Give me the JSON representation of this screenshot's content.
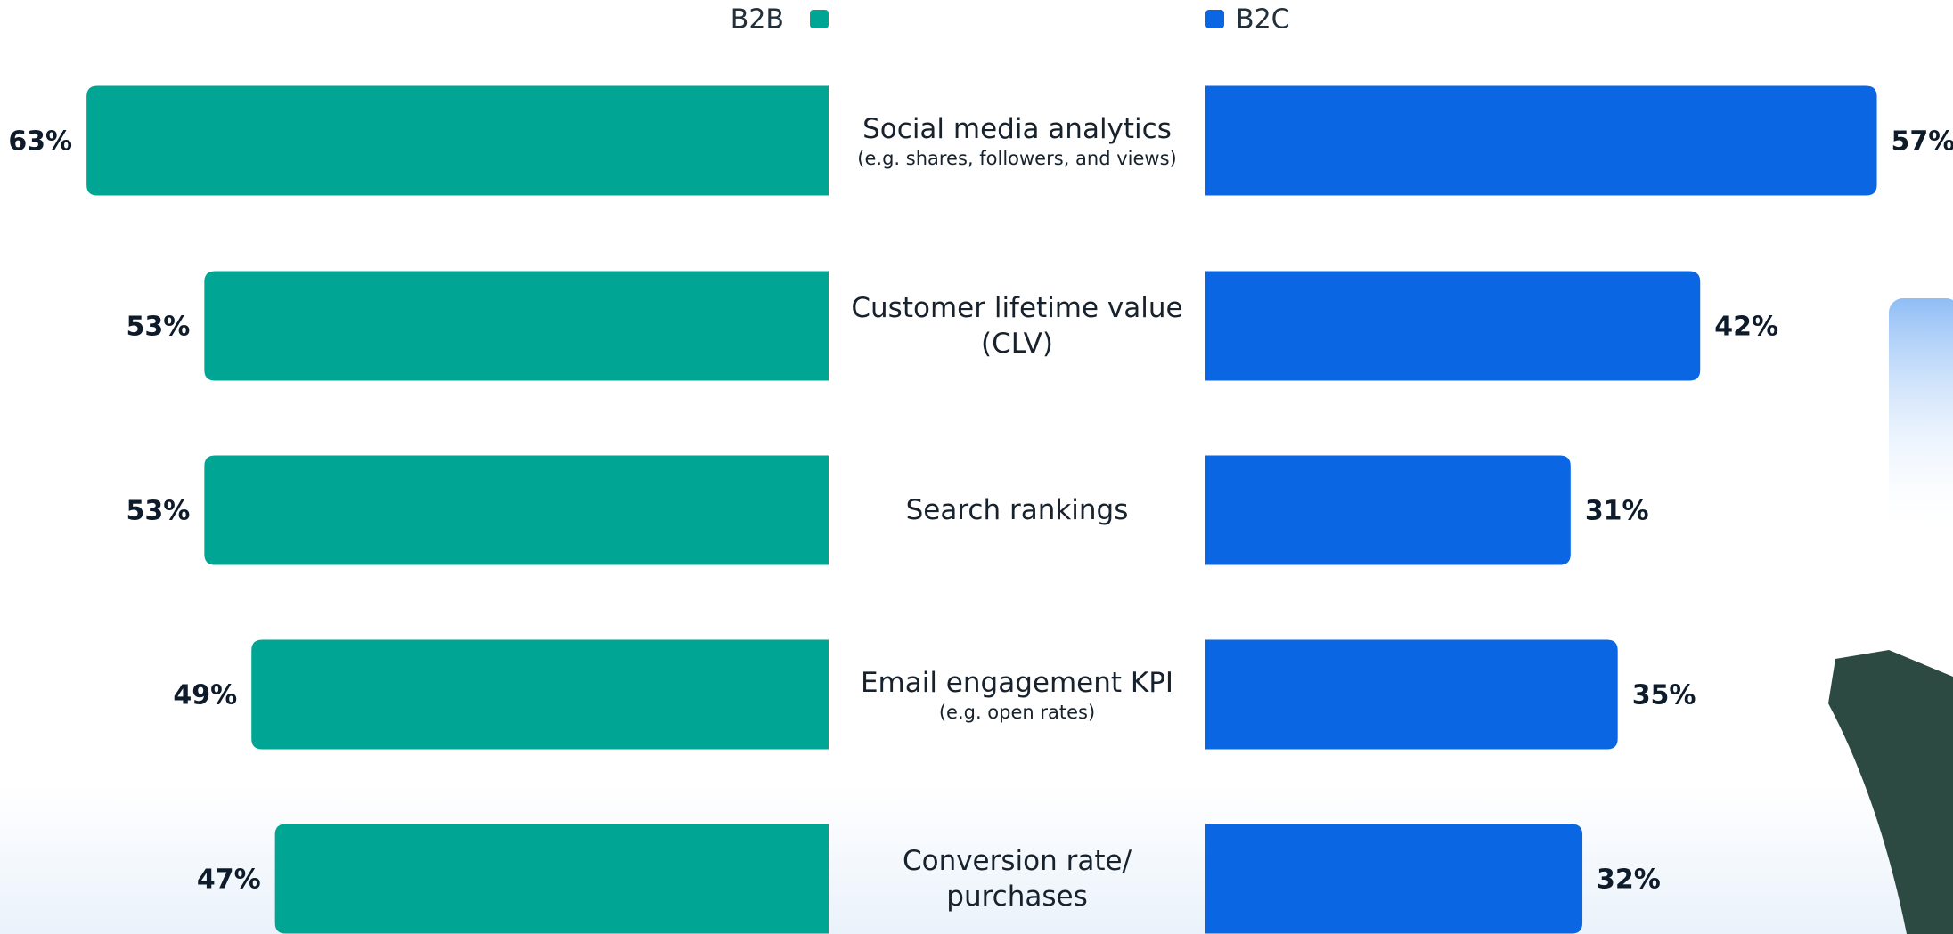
{
  "chart_data": {
    "type": "bar",
    "categories": [
      "Social media analytics",
      "Customer lifetime value (CLV)",
      "Search rankings",
      "Email engagement KPI",
      "Conversion rate/ purchases"
    ],
    "category_notes": [
      "(e.g. shares, followers, and views)",
      null,
      null,
      "(e.g. open rates)",
      null
    ],
    "series": [
      {
        "name": "B2B",
        "color": "#00a693",
        "values": [
          63,
          53,
          53,
          49,
          47
        ],
        "value_labels": [
          "63%",
          "53%",
          "53%",
          "49%",
          "47%"
        ]
      },
      {
        "name": "B2C",
        "color": "#0b66e4",
        "values": [
          57,
          42,
          31,
          35,
          32
        ],
        "value_labels": [
          "57%",
          "42%",
          "31%",
          "35%",
          "32%"
        ]
      }
    ]
  }
}
